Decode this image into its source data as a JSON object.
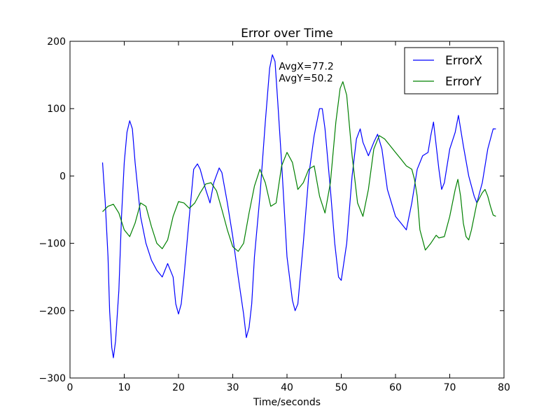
{
  "chart_data": {
    "type": "line",
    "title": "Error over Time",
    "xlabel": "Time/seconds",
    "ylabel": "",
    "xlim": [
      0,
      80
    ],
    "ylim": [
      -300,
      200
    ],
    "xticks": [
      0,
      10,
      20,
      30,
      40,
      50,
      60,
      70,
      80
    ],
    "yticks": [
      -300,
      -200,
      -100,
      0,
      100,
      200
    ],
    "xtick_labels": [
      "0",
      "10",
      "20",
      "30",
      "40",
      "50",
      "60",
      "70",
      "80"
    ],
    "ytick_labels": [
      "−300",
      "−200",
      "−100",
      "0",
      "100",
      "200"
    ],
    "grid": false,
    "legend_position": "top-right",
    "annotation": {
      "line1": "AvgX=77.2",
      "line2": "AvgY=50.2",
      "x": 38.5,
      "y": 155
    },
    "series": [
      {
        "name": "ErrorX",
        "color": "#0000ff",
        "points": [
          [
            6,
            20
          ],
          [
            6.5,
            -40
          ],
          [
            7,
            -120
          ],
          [
            7.3,
            -200
          ],
          [
            7.7,
            -255
          ],
          [
            8,
            -270
          ],
          [
            8.4,
            -245
          ],
          [
            9,
            -170
          ],
          [
            9.5,
            -60
          ],
          [
            10,
            20
          ],
          [
            10.5,
            65
          ],
          [
            11,
            82
          ],
          [
            11.5,
            70
          ],
          [
            12,
            20
          ],
          [
            13,
            -60
          ],
          [
            14,
            -100
          ],
          [
            15,
            -125
          ],
          [
            16,
            -140
          ],
          [
            17,
            -150
          ],
          [
            17.5,
            -140
          ],
          [
            18,
            -130
          ],
          [
            19,
            -150
          ],
          [
            19.5,
            -190
          ],
          [
            20,
            -205
          ],
          [
            20.5,
            -190
          ],
          [
            21,
            -150
          ],
          [
            22,
            -60
          ],
          [
            22.8,
            10
          ],
          [
            23.5,
            18
          ],
          [
            24,
            10
          ],
          [
            25,
            -20
          ],
          [
            25.8,
            -40
          ],
          [
            26.5,
            -10
          ],
          [
            27.5,
            12
          ],
          [
            28,
            5
          ],
          [
            29,
            -40
          ],
          [
            30,
            -90
          ],
          [
            31,
            -150
          ],
          [
            32,
            -205
          ],
          [
            32.5,
            -240
          ],
          [
            33,
            -225
          ],
          [
            33.5,
            -190
          ],
          [
            34,
            -120
          ],
          [
            35,
            -30
          ],
          [
            36,
            80
          ],
          [
            36.8,
            160
          ],
          [
            37.3,
            180
          ],
          [
            37.8,
            170
          ],
          [
            38.3,
            110
          ],
          [
            39,
            20
          ],
          [
            40,
            -120
          ],
          [
            41,
            -185
          ],
          [
            41.5,
            -200
          ],
          [
            42,
            -190
          ],
          [
            43,
            -100
          ],
          [
            44,
            0
          ],
          [
            45,
            60
          ],
          [
            46,
            100
          ],
          [
            46.5,
            100
          ],
          [
            47,
            70
          ],
          [
            48,
            -20
          ],
          [
            48.8,
            -100
          ],
          [
            49.5,
            -150
          ],
          [
            50,
            -155
          ],
          [
            51,
            -100
          ],
          [
            52,
            0
          ],
          [
            52.8,
            55
          ],
          [
            53.5,
            70
          ],
          [
            54,
            50
          ],
          [
            55,
            30
          ],
          [
            56,
            50
          ],
          [
            56.7,
            62
          ],
          [
            57.5,
            40
          ],
          [
            58.5,
            -20
          ],
          [
            60,
            -60
          ],
          [
            61,
            -70
          ],
          [
            62,
            -80
          ],
          [
            63,
            -40
          ],
          [
            64,
            10
          ],
          [
            65,
            30
          ],
          [
            66,
            35
          ],
          [
            66.5,
            60
          ],
          [
            67,
            80
          ],
          [
            68,
            10
          ],
          [
            68.5,
            -20
          ],
          [
            69,
            -10
          ],
          [
            70,
            40
          ],
          [
            71,
            65
          ],
          [
            71.6,
            90
          ],
          [
            72.5,
            45
          ],
          [
            73.5,
            0
          ],
          [
            74.5,
            -30
          ],
          [
            75,
            -40
          ],
          [
            75.5,
            -25
          ],
          [
            76,
            -10
          ],
          [
            77,
            40
          ],
          [
            78,
            70
          ],
          [
            78.5,
            70
          ]
        ]
      },
      {
        "name": "ErrorY",
        "color": "#008000",
        "points": [
          [
            6,
            -53
          ],
          [
            7,
            -45
          ],
          [
            8,
            -42
          ],
          [
            9,
            -55
          ],
          [
            10,
            -80
          ],
          [
            11,
            -90
          ],
          [
            12,
            -70
          ],
          [
            13,
            -40
          ],
          [
            14,
            -45
          ],
          [
            15,
            -75
          ],
          [
            16,
            -100
          ],
          [
            17,
            -108
          ],
          [
            18,
            -95
          ],
          [
            19,
            -60
          ],
          [
            20,
            -38
          ],
          [
            21,
            -40
          ],
          [
            22,
            -48
          ],
          [
            23,
            -40
          ],
          [
            24,
            -25
          ],
          [
            25,
            -12
          ],
          [
            26,
            -10
          ],
          [
            27,
            -22
          ],
          [
            28,
            -50
          ],
          [
            29,
            -80
          ],
          [
            30,
            -105
          ],
          [
            31,
            -112
          ],
          [
            32,
            -100
          ],
          [
            33,
            -55
          ],
          [
            34,
            -15
          ],
          [
            35,
            10
          ],
          [
            36,
            -10
          ],
          [
            37,
            -45
          ],
          [
            38,
            -40
          ],
          [
            39,
            15
          ],
          [
            40,
            35
          ],
          [
            41,
            20
          ],
          [
            42,
            -20
          ],
          [
            43,
            -10
          ],
          [
            44,
            10
          ],
          [
            45,
            15
          ],
          [
            46,
            -30
          ],
          [
            47,
            -55
          ],
          [
            48,
            -10
          ],
          [
            49,
            80
          ],
          [
            49.8,
            130
          ],
          [
            50.3,
            140
          ],
          [
            51,
            120
          ],
          [
            52,
            30
          ],
          [
            53,
            -40
          ],
          [
            54,
            -60
          ],
          [
            55,
            -20
          ],
          [
            56,
            40
          ],
          [
            57,
            60
          ],
          [
            58,
            55
          ],
          [
            59,
            45
          ],
          [
            60,
            35
          ],
          [
            61,
            25
          ],
          [
            62,
            15
          ],
          [
            63,
            10
          ],
          [
            63.5,
            -5
          ],
          [
            64,
            -30
          ],
          [
            64.5,
            -80
          ],
          [
            65.5,
            -110
          ],
          [
            66.5,
            -100
          ],
          [
            67.5,
            -88
          ],
          [
            68,
            -92
          ],
          [
            69,
            -90
          ],
          [
            70,
            -60
          ],
          [
            71,
            -20
          ],
          [
            71.5,
            -5
          ],
          [
            72,
            -30
          ],
          [
            72.5,
            -70
          ],
          [
            73,
            -90
          ],
          [
            73.5,
            -95
          ],
          [
            74,
            -80
          ],
          [
            75,
            -40
          ],
          [
            76,
            -25
          ],
          [
            76.5,
            -20
          ],
          [
            77,
            -30
          ],
          [
            77.5,
            -45
          ],
          [
            78,
            -58
          ],
          [
            78.5,
            -60
          ]
        ]
      }
    ]
  }
}
